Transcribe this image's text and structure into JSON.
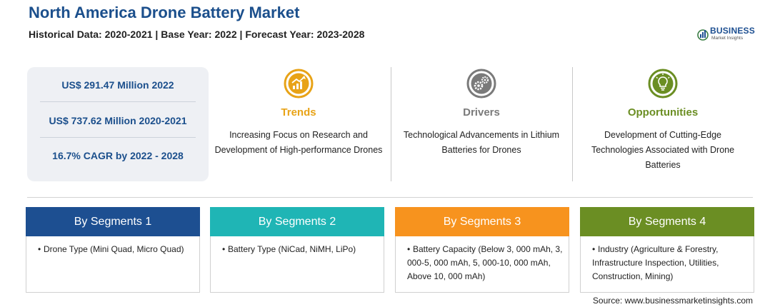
{
  "header": {
    "title": "North America Drone Battery Market",
    "subtitle": "Historical Data: 2020-2021 | Base Year: 2022 | Forecast Year: 2023-2028"
  },
  "logo": {
    "main": "BUSINESS",
    "sub": "Market Insights"
  },
  "stats": [
    "US$ 291.47 Million 2022",
    "US$ 737.62 Million 2020-2021",
    "16.7% CAGR by 2022 - 2028"
  ],
  "columns": [
    {
      "title": "Trends",
      "text": "Increasing Focus on Research and Development of High-performance Drones",
      "color": "#e8a317",
      "icon": "trend-chart-icon"
    },
    {
      "title": "Drivers",
      "text": "Technological Advancements in Lithium Batteries for Drones",
      "color": "#7a7a7a",
      "icon": "gears-icon"
    },
    {
      "title": "Opportunities",
      "text": "Development of Cutting-Edge Technologies Associated with Drone Batteries",
      "color": "#6b8e23",
      "icon": "lightbulb-icon"
    }
  ],
  "segments": [
    {
      "title": "By Segments 1",
      "color": "#1d4f91",
      "bullet": "•",
      "text": "Drone Type (Mini Quad, Micro Quad)"
    },
    {
      "title": "By Segments 2",
      "color": "#1fb5b5",
      "bullet": "•",
      "text": "Battery Type (NiCad, NiMH, LiPo)"
    },
    {
      "title": "By Segments 3",
      "color": "#f7931e",
      "bullet": "•",
      "text": "Battery Capacity (Below 3, 000 mAh, 3, 000-5, 000 mAh, 5, 000-10, 000 mAh, Above 10, 000 mAh)"
    },
    {
      "title": "By Segments 4",
      "color": "#6b8e23",
      "bullet": "•",
      "text": "Industry (Agriculture & Forestry, Infrastructure Inspection, Utilities, Construction, Mining)"
    }
  ],
  "source": "Source: www.businessmarketinsights.com"
}
